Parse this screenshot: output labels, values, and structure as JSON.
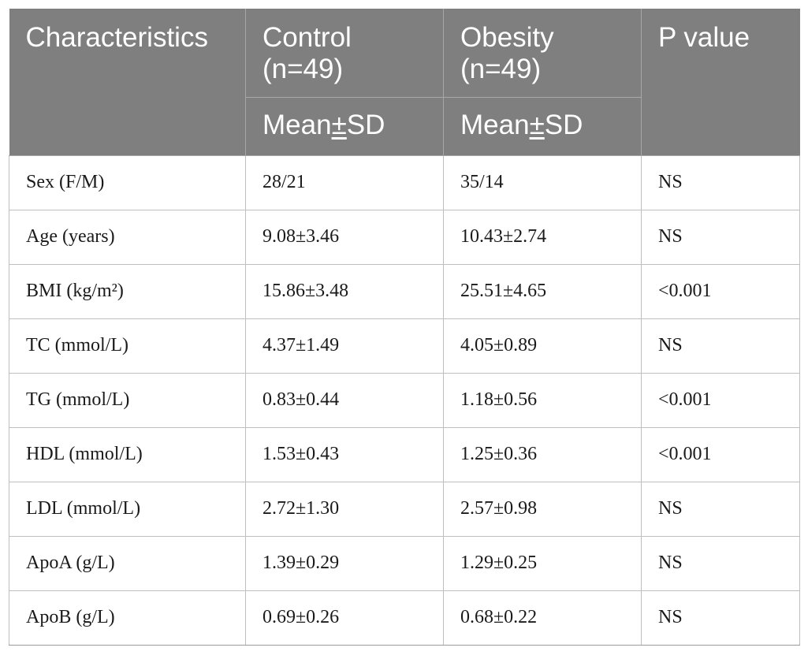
{
  "table": {
    "header": {
      "characteristics": "Characteristics",
      "control_line1": "Control",
      "control_line2": "(n=49)",
      "obesity_line1": "Obesity",
      "obesity_line2": "(n=49)",
      "p_value": "P value",
      "mean_sd_control": "Mean±SD",
      "mean_sd_obesity": "Mean±SD"
    },
    "rows": [
      {
        "label": "Sex (F/M)",
        "control": "28/21",
        "obesity": "35/14",
        "p": "NS"
      },
      {
        "label": "Age (years)",
        "control": "9.08±3.46",
        "obesity": "10.43±2.74",
        "p": "NS"
      },
      {
        "label": "BMI (kg/m²)",
        "control": "15.86±3.48",
        "obesity": "25.51±4.65",
        "p": "<0.001"
      },
      {
        "label": "TC (mmol/L)",
        "control": "4.37±1.49",
        "obesity": "4.05±0.89",
        "p": "NS"
      },
      {
        "label": "TG (mmol/L)",
        "control": "0.83±0.44",
        "obesity": "1.18±0.56",
        "p": "<0.001"
      },
      {
        "label": "HDL (mmol/L)",
        "control": "1.53±0.43",
        "obesity": "1.25±0.36",
        "p": "<0.001"
      },
      {
        "label": "LDL (mmol/L)",
        "control": "2.72±1.30",
        "obesity": "2.57±0.98",
        "p": "NS"
      },
      {
        "label": "ApoA (g/L)",
        "control": "1.39±0.29",
        "obesity": "1.29±0.25",
        "p": "NS"
      },
      {
        "label": "ApoB (g/L)",
        "control": "0.69±0.26",
        "obesity": "0.68±0.22",
        "p": "NS"
      }
    ]
  },
  "colors": {
    "header_bg": "#7f7f7f",
    "header_text": "#ffffff",
    "grid_line": "#bfbfbf"
  }
}
